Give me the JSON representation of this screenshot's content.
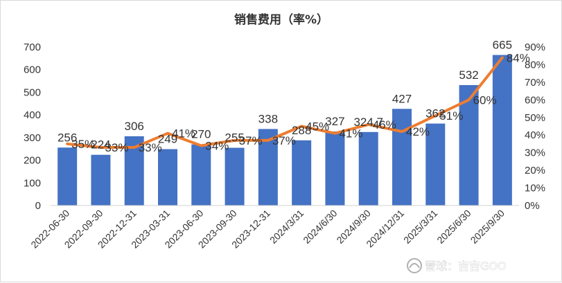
{
  "chart_data": {
    "type": "bar",
    "title": "销售费用（率%）",
    "categories": [
      "2022-06-30",
      "2022-09-30",
      "2022-12-31",
      "2023-03-31",
      "2023-06-30",
      "2023-09-30",
      "2023-12-31",
      "2024/3/31",
      "2024/6/30",
      "2024/9/30",
      "2024/12/31",
      "2025/3/31",
      "2025/6/30",
      "2025/9/30"
    ],
    "bar_value_labels": [
      "256",
      "224",
      "306",
      "249",
      "270",
      "255",
      "338",
      "288",
      "327",
      "324.7",
      "427",
      "362",
      "532",
      "665"
    ],
    "line_value_labels": [
      "35%",
      "33%",
      "33%",
      "41%",
      "34%",
      "37%",
      "37%",
      "45%",
      "41%",
      "46%",
      "42%",
      "51%",
      "60%",
      "84%"
    ],
    "series": [
      {
        "type": "bar",
        "axis": "left",
        "color": "#4472C4",
        "values": [
          256,
          224,
          306,
          249,
          270,
          255,
          338,
          288,
          327,
          324.7,
          427,
          362,
          532,
          665
        ]
      },
      {
        "type": "line",
        "axis": "right",
        "color": "#ED7D31",
        "values": [
          35,
          33,
          33,
          41,
          34,
          37,
          37,
          45,
          41,
          46,
          42,
          51,
          60,
          84
        ]
      }
    ],
    "y_left": {
      "range": [
        0,
        700
      ],
      "ticks": [
        "0",
        "100",
        "200",
        "300",
        "400",
        "500",
        "600",
        "700"
      ]
    },
    "y_right": {
      "range": [
        0,
        90
      ],
      "ticks": [
        "0%",
        "10%",
        "20%",
        "30%",
        "40%",
        "50%",
        "60%",
        "70%",
        "80%",
        "90%"
      ]
    },
    "grid": false,
    "legend": "none"
  },
  "watermark": {
    "text": "雪球：吉吉GOO",
    "icon": "snowball-logo-icon"
  }
}
